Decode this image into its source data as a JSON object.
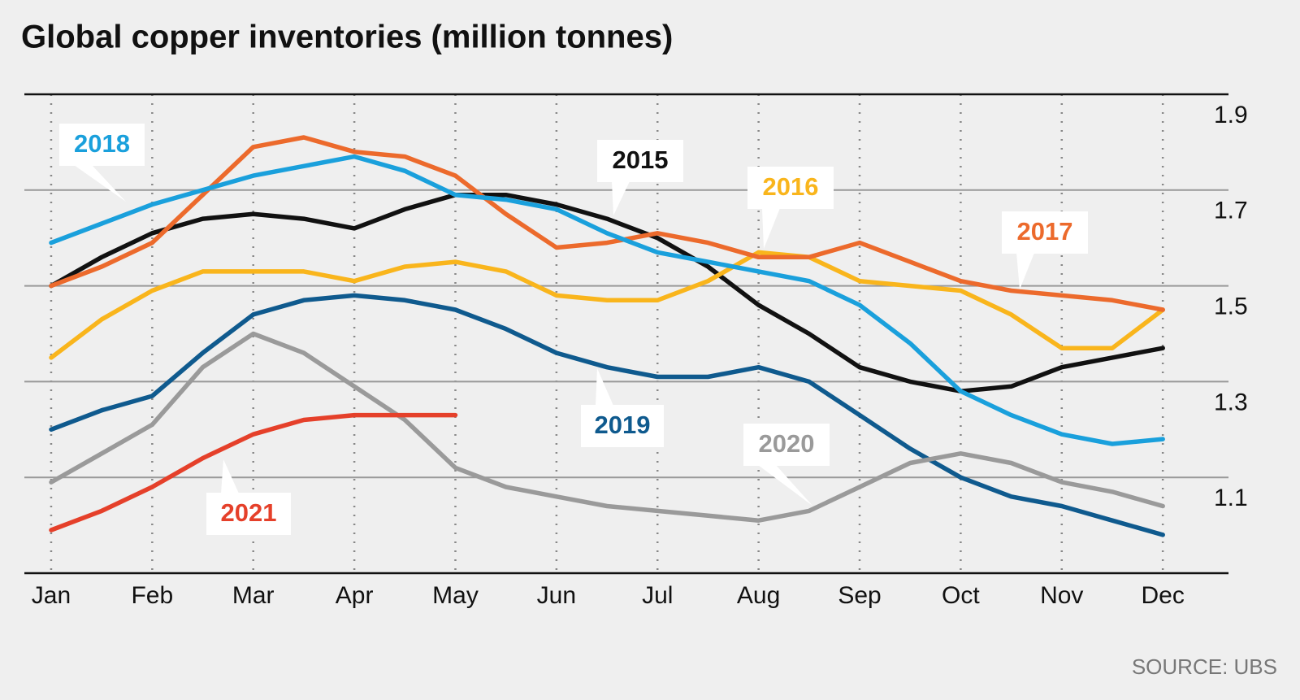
{
  "chart_data": {
    "type": "line",
    "title": "Global copper inventories (million tonnes)",
    "source": "SOURCE: UBS",
    "x": [
      0,
      0.5,
      1,
      1.5,
      2,
      2.5,
      3,
      3.5,
      4,
      4.5,
      5,
      5.5,
      6,
      6.5,
      7,
      7.5,
      8,
      8.5,
      9,
      9.5,
      10,
      10.5,
      11
    ],
    "xlim": [
      -0.265,
      11.65
    ],
    "xticks": [
      {
        "value": 0,
        "label": "Jan"
      },
      {
        "value": 1,
        "label": "Feb"
      },
      {
        "value": 2,
        "label": "Mar"
      },
      {
        "value": 3,
        "label": "Apr"
      },
      {
        "value": 4,
        "label": "May"
      },
      {
        "value": 5,
        "label": "Jun"
      },
      {
        "value": 6,
        "label": "Jul"
      },
      {
        "value": 7,
        "label": "Aug"
      },
      {
        "value": 8,
        "label": "Sep"
      },
      {
        "value": 9,
        "label": "Oct"
      },
      {
        "value": 10,
        "label": "Nov"
      },
      {
        "value": 11,
        "label": "Dec"
      }
    ],
    "ylim": [
      0.9,
      1.9
    ],
    "yticks": [
      1.9,
      1.7,
      1.5,
      1.3,
      1.1
    ],
    "grid": true,
    "series": [
      {
        "name": "2015",
        "color": "#111111",
        "values": [
          1.5,
          1.56,
          1.61,
          1.64,
          1.65,
          1.64,
          1.62,
          1.66,
          1.69,
          1.69,
          1.67,
          1.64,
          1.6,
          1.54,
          1.46,
          1.4,
          1.33,
          1.3,
          1.28,
          1.29,
          1.33,
          1.35,
          1.37
        ]
      },
      {
        "name": "2016",
        "color": "#f9b51c",
        "values": [
          1.35,
          1.43,
          1.49,
          1.53,
          1.53,
          1.53,
          1.51,
          1.54,
          1.55,
          1.53,
          1.48,
          1.47,
          1.47,
          1.51,
          1.57,
          1.56,
          1.51,
          1.5,
          1.49,
          1.44,
          1.37,
          1.37,
          1.45
        ]
      },
      {
        "name": "2017",
        "color": "#ec6a2c",
        "values": [
          1.5,
          1.54,
          1.59,
          1.69,
          1.79,
          1.81,
          1.78,
          1.77,
          1.73,
          1.65,
          1.58,
          1.59,
          1.61,
          1.59,
          1.56,
          1.56,
          1.59,
          1.55,
          1.51,
          1.49,
          1.48,
          1.47,
          1.45
        ]
      },
      {
        "name": "2018",
        "color": "#1aa0dc",
        "values": [
          1.59,
          1.63,
          1.67,
          1.7,
          1.73,
          1.75,
          1.77,
          1.74,
          1.69,
          1.68,
          1.66,
          1.61,
          1.57,
          1.55,
          1.53,
          1.51,
          1.46,
          1.38,
          1.28,
          1.23,
          1.19,
          1.17,
          1.18
        ]
      },
      {
        "name": "2019",
        "color": "#0f5a8e",
        "values": [
          1.2,
          1.24,
          1.27,
          1.36,
          1.44,
          1.47,
          1.48,
          1.47,
          1.45,
          1.41,
          1.36,
          1.33,
          1.31,
          1.31,
          1.33,
          1.3,
          1.23,
          1.16,
          1.1,
          1.06,
          1.04,
          1.01,
          0.98
        ]
      },
      {
        "name": "2020",
        "color": "#9a9a9a",
        "values": [
          1.09,
          1.15,
          1.21,
          1.33,
          1.4,
          1.36,
          1.29,
          1.22,
          1.12,
          1.08,
          1.06,
          1.04,
          1.03,
          1.02,
          1.01,
          1.03,
          1.08,
          1.13,
          1.15,
          1.13,
          1.09,
          1.07,
          1.04
        ]
      },
      {
        "name": "2021",
        "color": "#e5402a",
        "values": [
          0.99,
          1.03,
          1.08,
          1.14,
          1.19,
          1.22,
          1.23,
          1.23,
          1.23,
          null,
          null,
          null,
          null,
          null,
          null,
          null,
          null,
          null,
          null,
          null,
          null,
          null,
          null
        ]
      }
    ]
  }
}
